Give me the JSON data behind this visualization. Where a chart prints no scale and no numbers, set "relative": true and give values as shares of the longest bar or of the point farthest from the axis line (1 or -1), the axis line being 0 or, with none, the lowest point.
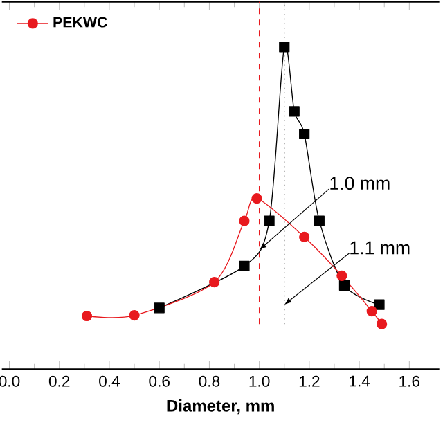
{
  "chart_data": {
    "type": "line",
    "xlabel": "Diameter, mm",
    "relative": true,
    "xlim": [
      -0.03,
      1.72
    ],
    "xticks": [
      {
        "value": 0.0,
        "label": "0.0"
      },
      {
        "value": 0.2,
        "label": "0.2"
      },
      {
        "value": 0.4,
        "label": "0.4"
      },
      {
        "value": 0.6,
        "label": "0.6"
      },
      {
        "value": 0.8,
        "label": "0.8"
      },
      {
        "value": 1.0,
        "label": "1.0"
      },
      {
        "value": 1.2,
        "label": "1.2"
      },
      {
        "value": 1.4,
        "label": "1.4"
      },
      {
        "value": 1.6,
        "label": "1.6"
      }
    ],
    "series": [
      {
        "color": "#000000",
        "marker": "square",
        "x": [
          0.6,
          0.94,
          1.04,
          1.1,
          1.14,
          1.18,
          1.24,
          1.34,
          1.48
        ],
        "values": [
          0.19,
          0.32,
          0.46,
          1.0,
          0.8,
          0.73,
          0.46,
          0.26,
          0.2
        ]
      },
      {
        "name": "PEKWC",
        "color": "#e8191e",
        "marker": "circle",
        "x": [
          0.31,
          0.5,
          0.82,
          0.94,
          0.99,
          1.18,
          1.33,
          1.45,
          1.49
        ],
        "values": [
          0.165,
          0.167,
          0.27,
          0.46,
          0.53,
          0.41,
          0.29,
          0.18,
          0.14
        ]
      }
    ],
    "ref_lines": [
      {
        "axis": "x",
        "value": 1.0,
        "color": "#e8191e",
        "line_style": "dashed"
      },
      {
        "axis": "x",
        "value": 1.1,
        "color": "#555555",
        "line_style": "dotted"
      }
    ],
    "annotations": [
      {
        "text": "1.0 mm",
        "x": 1.0,
        "y": 0.37
      },
      {
        "text": "1.1 mm",
        "x": 1.1,
        "y": 0.2
      }
    ],
    "legend": "top left",
    "grid": false
  }
}
